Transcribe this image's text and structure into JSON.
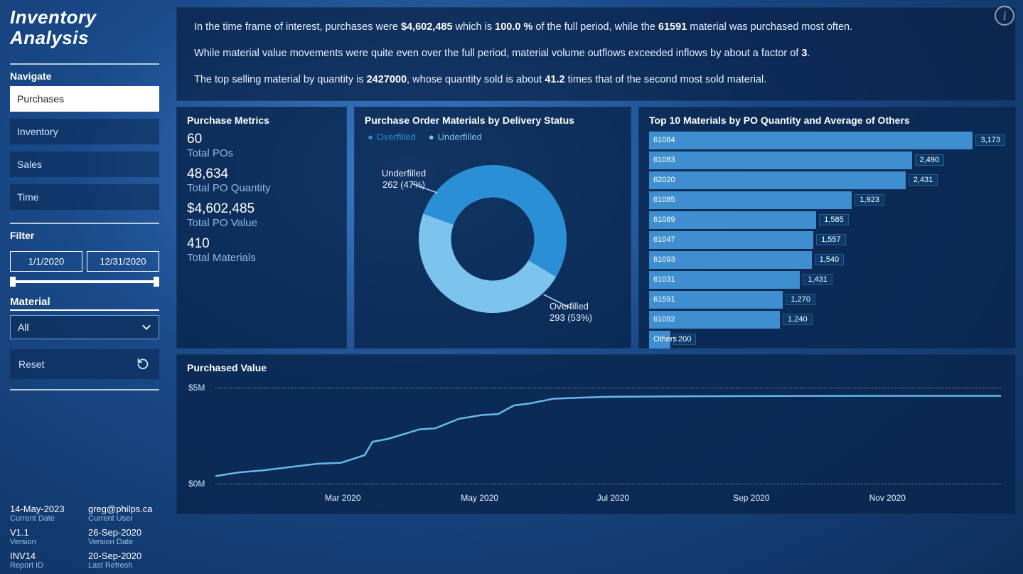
{
  "app_title": "Inventory Analysis",
  "info_icon_glyph": "i",
  "sidebar": {
    "navigate_label": "Navigate",
    "items": [
      {
        "label": "Purchases",
        "active": true
      },
      {
        "label": "Inventory",
        "active": false
      },
      {
        "label": "Sales",
        "active": false
      },
      {
        "label": "Time",
        "active": false
      }
    ],
    "filter_label": "Filter",
    "date_from": "1/1/2020",
    "date_to": "12/31/2020",
    "material_label": "Material",
    "material_value": "All",
    "reset_label": "Reset"
  },
  "meta": {
    "current_date": {
      "value": "14-May-2023",
      "label": "Current Date"
    },
    "current_user": {
      "value": "greg@philps.ca",
      "label": "Current User"
    },
    "version": {
      "value": "V1.1",
      "label": "Version"
    },
    "version_date": {
      "value": "26-Sep-2020",
      "label": "Version Date"
    },
    "report_id": {
      "value": "INV14",
      "label": "Report ID"
    },
    "last_refresh": {
      "value": "20-Sep-2020",
      "label": "Last Refresh"
    }
  },
  "narrative": {
    "p1_a": "In the time frame of interest, purchases were ",
    "p1_val1": "$4,602,485",
    "p1_b": " which is ",
    "p1_val2": "100.0 %",
    "p1_c": " of the full period, while the ",
    "p1_val3": "61591",
    "p1_d": " material was purchased most often.",
    "p2_a": "While material value movements were quite even over the full period, material volume outflows exceeded inflows by about a factor of ",
    "p2_val1": "3",
    "p2_b": ".",
    "p3_a": "The top selling material by quantity is ",
    "p3_val1": "2427000",
    "p3_b": ", whose quantity sold is about ",
    "p3_val2": "41.2",
    "p3_c": " times that of the second most sold material."
  },
  "metrics_card": {
    "title": "Purchase Metrics",
    "items": [
      {
        "value": "60",
        "label": "Total POs"
      },
      {
        "value": "48,634",
        "label": "Total PO Quantity"
      },
      {
        "value": "$4,602,485",
        "label": "Total PO Value"
      },
      {
        "value": "410",
        "label": "Total Materials"
      }
    ]
  },
  "donut_card": {
    "title": "Purchase Order Materials by Delivery Status",
    "legend": {
      "over": "Overfilled",
      "under": "Underfilled"
    },
    "colors": {
      "over": "#2b8fd6",
      "under": "#7cc3ee",
      "hole": "#0b2a58"
    },
    "over": {
      "label": "Overfilled",
      "count": 293,
      "pct": 53,
      "text": "293 (53%)"
    },
    "under": {
      "label": "Underfilled",
      "count": 262,
      "pct": 47,
      "text": "262 (47%)"
    }
  },
  "top10_card": {
    "title": "Top 10 Materials by PO Quantity and Average of Others",
    "max": 3173,
    "bar_color": "#3f8fd0",
    "badge_bg": "#0a3a6a",
    "rows": [
      {
        "id": "61084",
        "value": 3173,
        "text": "3,173"
      },
      {
        "id": "61083",
        "value": 2490,
        "text": "2,490"
      },
      {
        "id": "62020",
        "value": 2431,
        "text": "2,431"
      },
      {
        "id": "61085",
        "value": 1923,
        "text": "1,923"
      },
      {
        "id": "61089",
        "value": 1585,
        "text": "1,585"
      },
      {
        "id": "61047",
        "value": 1557,
        "text": "1,557"
      },
      {
        "id": "61093",
        "value": 1540,
        "text": "1,540"
      },
      {
        "id": "61031",
        "value": 1431,
        "text": "1,431"
      },
      {
        "id": "61591",
        "value": 1270,
        "text": "1,270"
      },
      {
        "id": "61092",
        "value": 1240,
        "text": "1,240"
      },
      {
        "id": "Others",
        "value": 200,
        "text": "200"
      }
    ]
  },
  "line_card": {
    "title": "Purchased Value",
    "ylim": [
      0,
      5000000
    ],
    "yticks": [
      {
        "v": 0,
        "label": "$0M"
      },
      {
        "v": 5000000,
        "label": "$5M"
      }
    ],
    "xticks": [
      "Mar 2020",
      "May 2020",
      "Jul 2020",
      "Sep 2020",
      "Nov 2020"
    ],
    "line_color": "#6ab8ec",
    "grid_color": "rgba(255,255,255,0.45)",
    "points": [
      {
        "t": 0.0,
        "v": 400000
      },
      {
        "t": 0.03,
        "v": 600000
      },
      {
        "t": 0.06,
        "v": 700000
      },
      {
        "t": 0.1,
        "v": 900000
      },
      {
        "t": 0.13,
        "v": 1050000
      },
      {
        "t": 0.16,
        "v": 1100000
      },
      {
        "t": 0.19,
        "v": 1500000
      },
      {
        "t": 0.2,
        "v": 2200000
      },
      {
        "t": 0.22,
        "v": 2350000
      },
      {
        "t": 0.26,
        "v": 2850000
      },
      {
        "t": 0.28,
        "v": 2900000
      },
      {
        "t": 0.31,
        "v": 3400000
      },
      {
        "t": 0.34,
        "v": 3600000
      },
      {
        "t": 0.36,
        "v": 3650000
      },
      {
        "t": 0.38,
        "v": 4100000
      },
      {
        "t": 0.4,
        "v": 4200000
      },
      {
        "t": 0.43,
        "v": 4450000
      },
      {
        "t": 0.46,
        "v": 4500000
      },
      {
        "t": 0.5,
        "v": 4550000
      },
      {
        "t": 0.6,
        "v": 4580000
      },
      {
        "t": 0.75,
        "v": 4600000
      },
      {
        "t": 1.0,
        "v": 4602485
      }
    ]
  },
  "colors": {
    "panel_bg": "rgba(8,36,76,0.82)",
    "text_muted": "#8fb8e4"
  }
}
